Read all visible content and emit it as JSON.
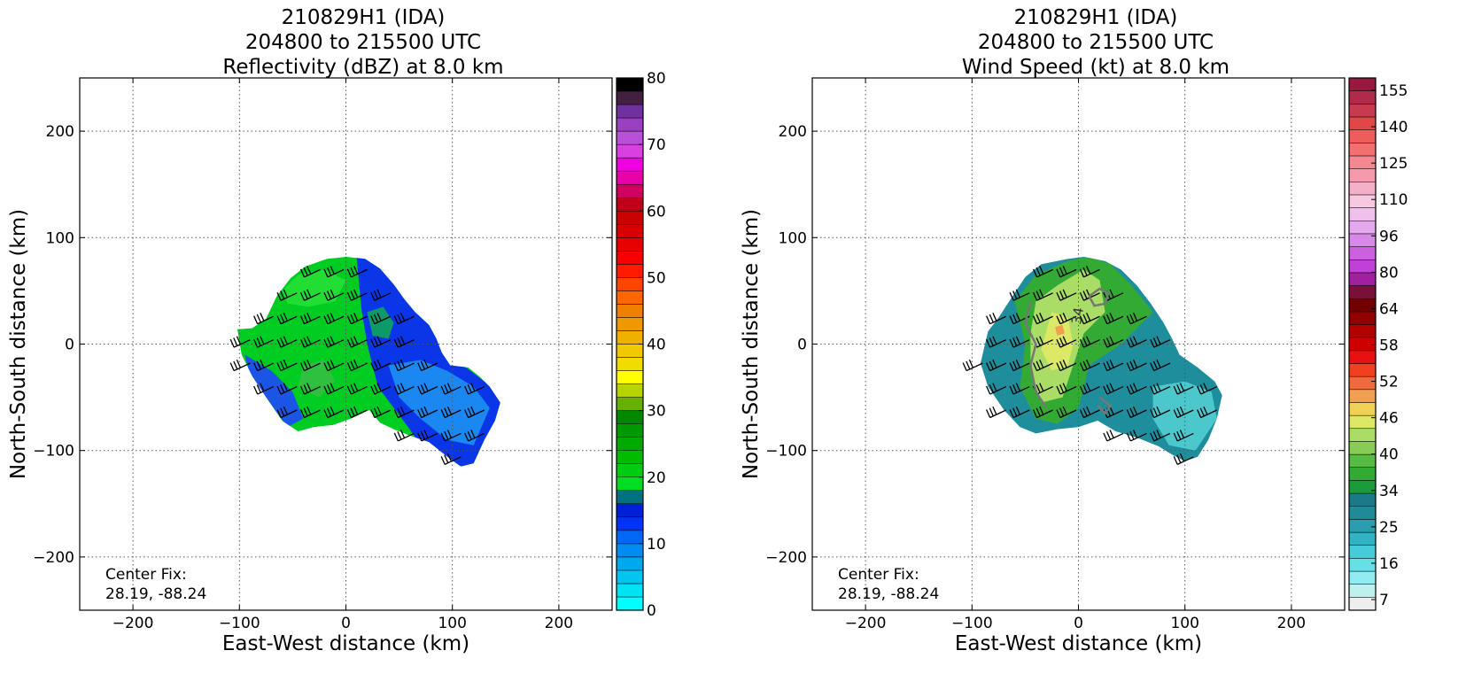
{
  "panels": [
    {
      "title_lines": [
        "210829H1 (IDA)",
        "204800 to 215500 UTC",
        "Reflectivity (dBZ) at 8.0 km"
      ],
      "xlabel": "East-West distance (km)",
      "ylabel": "North-South distance (km)",
      "center_fix_label": "Center Fix:",
      "center_fix_value": "28.19, -88.24"
    },
    {
      "title_lines": [
        "210829H1 (IDA)",
        "204800 to 215500 UTC",
        "Wind Speed (kt) at 8.0 km"
      ],
      "xlabel": "East-West distance (km)",
      "ylabel": "North-South distance (km)",
      "center_fix_label": "Center Fix:",
      "center_fix_value": "28.19, -88.24"
    }
  ],
  "chart_data": [
    {
      "type": "heatmap",
      "title": "210829H1 (IDA) 204800 to 215500 UTC Reflectivity (dBZ) at 8.0 km",
      "xlabel": "East-West distance (km)",
      "ylabel": "North-South distance (km)",
      "xlim": [
        -250,
        250
      ],
      "ylim": [
        -250,
        250
      ],
      "xticks": [
        -200,
        -100,
        0,
        100,
        200
      ],
      "yticks": [
        -200,
        -100,
        0,
        100,
        200
      ],
      "grid": true,
      "colorbar": {
        "range": [
          0,
          80
        ],
        "tick_labels": [
          "0",
          "10",
          "20",
          "30",
          "40",
          "50",
          "60",
          "70",
          "80"
        ],
        "colors": [
          "#00ffff",
          "#00e3f5",
          "#00c5f0",
          "#00a8ee",
          "#008cf0",
          "#0068f5",
          "#0033f5",
          "#0020d8",
          "#00727f",
          "#00dd22",
          "#00cc11",
          "#00bb00",
          "#00aa00",
          "#009900",
          "#008800",
          "#66b000",
          "#b8d400",
          "#ffff00",
          "#f2dc00",
          "#f2c800",
          "#f0b000",
          "#f09800",
          "#f08000",
          "#ff6600",
          "#ff4400",
          "#ff1a00",
          "#f70000",
          "#e80000",
          "#d80000",
          "#c80000",
          "#c00018",
          "#d00060",
          "#e800a8",
          "#ee00e0",
          "#d840e0",
          "#b850d8",
          "#9840c0",
          "#7030a0",
          "#442040",
          "#000000"
        ]
      },
      "wind_barb_speed_kt": 30,
      "annotations": [
        "Center Fix:",
        "28.19, -88.24"
      ]
    },
    {
      "type": "heatmap",
      "title": "210829H1 (IDA) 204800 to 215500 UTC Wind Speed (kt) at 8.0 km",
      "xlabel": "East-West distance (km)",
      "ylabel": "North-South distance (km)",
      "xlim": [
        -250,
        250
      ],
      "ylim": [
        -250,
        250
      ],
      "xticks": [
        -200,
        -100,
        0,
        100,
        200
      ],
      "yticks": [
        -200,
        -100,
        0,
        100,
        200
      ],
      "grid": true,
      "colorbar": {
        "tick_labels": [
          "7",
          "16",
          "25",
          "34",
          "40",
          "46",
          "52",
          "58",
          "64",
          "80",
          "96",
          "110",
          "125",
          "140",
          "155"
        ],
        "colors": [
          "#eeeeee",
          "#bff0f0",
          "#90ecf0",
          "#66e0e6",
          "#44ccd8",
          "#33b2c4",
          "#2a9eb0",
          "#1f8a98",
          "#1a7a88",
          "#1a9a3a",
          "#33aa33",
          "#55bb44",
          "#88cc55",
          "#aadd66",
          "#dde866",
          "#f0d055",
          "#f0a050",
          "#f06a40",
          "#f04020",
          "#e81010",
          "#d00000",
          "#b00000",
          "#900000",
          "#700000",
          "#78103a",
          "#a020a0",
          "#c040d8",
          "#cc60e0",
          "#d888e8",
          "#e4a8ec",
          "#f0c0ec",
          "#f8c8e0",
          "#f4b0c8",
          "#f49aac",
          "#f48890",
          "#f27070",
          "#ee5c5c",
          "#e04848",
          "#c83a50",
          "#b02a4a",
          "#981840"
        ]
      },
      "wind_barb_speed_kt": 30,
      "contour_label": "34",
      "annotations": [
        "Center Fix:",
        "28.19, -88.24"
      ]
    }
  ]
}
